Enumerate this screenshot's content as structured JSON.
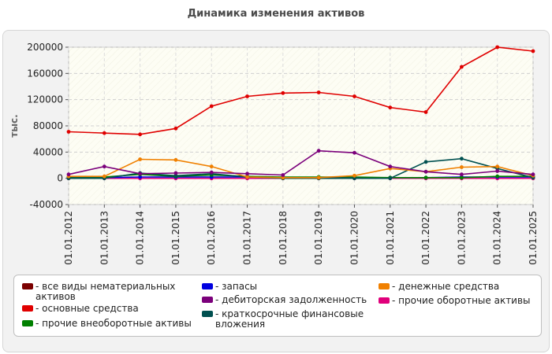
{
  "chart_data": {
    "type": "line",
    "title": "Динамика изменения активов",
    "ylabel": "тыс.",
    "ylim": [
      -40000,
      200000
    ],
    "yticks": [
      -40000,
      0,
      40000,
      80000,
      120000,
      160000,
      200000
    ],
    "grid": true,
    "legend_position": "bottom",
    "x": [
      "01.01.2012",
      "01.01.2013",
      "01.01.2014",
      "01.01.2015",
      "01.01.2016",
      "01.01.2017",
      "01.01.2018",
      "01.01.2019",
      "01.01.2020",
      "01.01.2021",
      "01.01.2022",
      "01.01.2023",
      "01.01.2024",
      "01.01.2025"
    ],
    "series": [
      {
        "name": "все виды нематериальных активов",
        "color": "#7b0000",
        "values": [
          0,
          0,
          0,
          0,
          0,
          0,
          0,
          0,
          0,
          0,
          0,
          0,
          0,
          0
        ]
      },
      {
        "name": "основные средства",
        "color": "#e00000",
        "values": [
          71000,
          69000,
          67000,
          76000,
          110000,
          125000,
          130000,
          131000,
          125000,
          108000,
          101000,
          170000,
          200000,
          194000
        ]
      },
      {
        "name": "прочие внеоборотные активы",
        "color": "#008000",
        "values": [
          2000,
          2000,
          6000,
          3000,
          5000,
          3000,
          2000,
          2000,
          2000,
          1000,
          1000,
          1000,
          3000,
          3000
        ]
      },
      {
        "name": "запасы",
        "color": "#0000e0",
        "values": [
          1000,
          1000,
          2000,
          2000,
          2000,
          2000,
          1000,
          1000,
          1000,
          1000,
          1000,
          2000,
          2000,
          2000
        ]
      },
      {
        "name": "дебиторская задолженность",
        "color": "#7b007b",
        "values": [
          6000,
          18000,
          7000,
          8000,
          9000,
          7000,
          5000,
          42000,
          39000,
          18000,
          10000,
          6000,
          11000,
          6000
        ]
      },
      {
        "name": "краткосрочные финансовые вложения",
        "color": "#005050",
        "values": [
          0,
          0,
          8000,
          4000,
          7000,
          2000,
          0,
          0,
          0,
          0,
          25000,
          30000,
          15000,
          1000
        ]
      },
      {
        "name": "денежные средства",
        "color": "#f08000",
        "values": [
          3000,
          3000,
          29000,
          28000,
          18000,
          2000,
          1000,
          1000,
          4000,
          15000,
          10000,
          17000,
          18000,
          4000
        ]
      },
      {
        "name": "прочие оборотные активы",
        "color": "#e0007b",
        "values": [
          0,
          0,
          0,
          0,
          0,
          0,
          0,
          0,
          0,
          0,
          0,
          0,
          0,
          0
        ]
      }
    ],
    "legend_items": [
      {
        "name": "все виды нематериальных активов",
        "color": "#7b0000"
      },
      {
        "name": "основные средства",
        "color": "#e00000"
      },
      {
        "name": "прочие внеоборотные активы",
        "color": "#008000"
      },
      {
        "name": "запасы",
        "color": "#0000e0"
      },
      {
        "name": "дебиторская задолженность",
        "color": "#7b007b"
      },
      {
        "name": "краткосрочные финансовые вложения",
        "color": "#005050"
      },
      {
        "name": "денежные средства",
        "color": "#f08000"
      },
      {
        "name": "прочие оборотные активы",
        "color": "#e0007b"
      }
    ]
  }
}
